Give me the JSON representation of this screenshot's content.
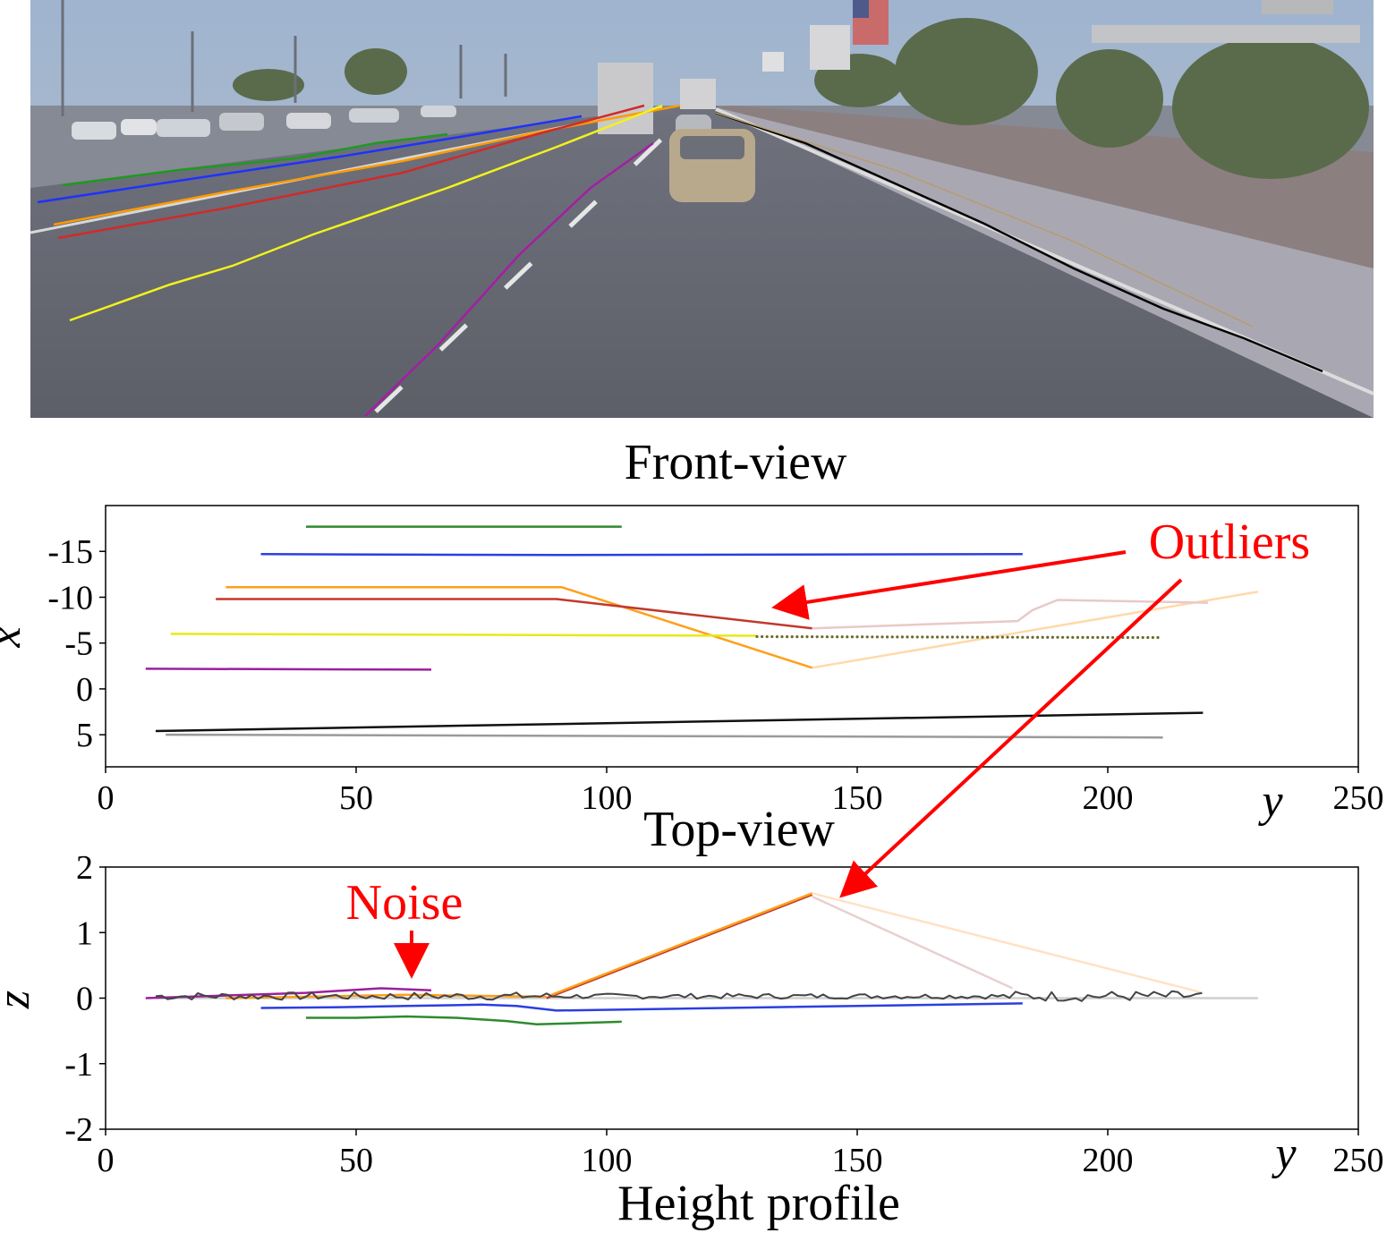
{
  "captions": {
    "front": "Front-view",
    "top": "Top-view",
    "height": "Height profile"
  },
  "annotations": {
    "outliers": "Outliers",
    "noise": "Noise"
  },
  "colors": {
    "green": "#2e8b2e",
    "blue": "#2b3fe0",
    "orange": "#ff9f1c",
    "red": "#c0392b",
    "yellow": "#e8e81a",
    "purple": "#9b209b",
    "black": "#111111",
    "gray": "#9a9a9a",
    "annotation": "#ff0000"
  },
  "front_view": {
    "icons": [
      "road-scene-photo",
      "car-icon",
      "truck-icon",
      "flag-icon",
      "billboard-icon",
      "tree-icon"
    ]
  },
  "chart_data": [
    {
      "type": "line",
      "name_key": "top_view",
      "xlabel": "y",
      "ylabel": "x",
      "xlim": [
        0,
        250
      ],
      "ylim": [
        8.5,
        -20
      ],
      "x_ticks": [
        "0",
        "50",
        "100",
        "150",
        "200",
        "250"
      ],
      "y_ticks": [
        "-15",
        "-10",
        "-5",
        "0",
        "5"
      ],
      "x_tick_values": [
        0,
        50,
        100,
        150,
        200,
        250
      ],
      "y_tick_values": [
        -15,
        -10,
        -5,
        0,
        5
      ],
      "series": [
        {
          "color": "#2e8b2e",
          "points": [
            [
              40,
              -17.7
            ],
            [
              103,
              -17.7
            ]
          ]
        },
        {
          "color": "#2b3fe0",
          "points": [
            [
              31,
              -14.7
            ],
            [
              90,
              -14.6
            ],
            [
              183,
              -14.7
            ]
          ]
        },
        {
          "color": "#ff9f1c",
          "points": [
            [
              24,
              -11.1
            ],
            [
              91,
              -11.1
            ],
            [
              141,
              -2.3
            ]
          ]
        },
        {
          "color": "#ffd9a8",
          "points": [
            [
              141,
              -2.3
            ],
            [
              230,
              -10.6
            ]
          ]
        },
        {
          "color": "#c0392b",
          "points": [
            [
              22,
              -9.8
            ],
            [
              90,
              -9.8
            ],
            [
              141,
              -6.6
            ]
          ]
        },
        {
          "color": "#e8c9c9",
          "points": [
            [
              141,
              -6.6
            ],
            [
              182,
              -7.4
            ],
            [
              185,
              -8.6
            ],
            [
              190,
              -9.7
            ],
            [
              220,
              -9.4
            ]
          ]
        },
        {
          "color": "#e8e81a",
          "points": [
            [
              13,
              -6.0
            ],
            [
              130,
              -5.8
            ]
          ]
        },
        {
          "color": "#6b6b2a",
          "dotted": true,
          "points": [
            [
              130,
              -5.7
            ],
            [
              210,
              -5.6
            ]
          ]
        },
        {
          "color": "#9b209b",
          "points": [
            [
              8,
              -2.2
            ],
            [
              65,
              -2.1
            ]
          ]
        },
        {
          "color": "#111111",
          "points": [
            [
              10,
              4.6
            ],
            [
              219,
              2.6
            ]
          ]
        },
        {
          "color": "#9a9a9a",
          "points": [
            [
              12,
              5.0
            ],
            [
              211,
              5.3
            ]
          ]
        }
      ]
    },
    {
      "type": "line",
      "name_key": "height_profile",
      "xlabel": "y",
      "ylabel": "z",
      "xlim": [
        0,
        250
      ],
      "ylim": [
        -2,
        2
      ],
      "x_ticks": [
        "0",
        "50",
        "100",
        "150",
        "200",
        "250"
      ],
      "y_ticks": [
        "2",
        "1",
        "0",
        "-1",
        "-2"
      ],
      "x_tick_values": [
        0,
        50,
        100,
        150,
        200,
        250
      ],
      "y_tick_values": [
        2,
        1,
        0,
        -1,
        -2
      ],
      "series": [
        {
          "color": "#cfcfcf",
          "points": [
            [
              10,
              0.0
            ],
            [
              230,
              0.0
            ]
          ]
        },
        {
          "color": "#2e8b2e",
          "points": [
            [
              40,
              -0.3
            ],
            [
              50,
              -0.3
            ],
            [
              60,
              -0.28
            ],
            [
              70,
              -0.3
            ],
            [
              80,
              -0.35
            ],
            [
              86,
              -0.4
            ],
            [
              95,
              -0.38
            ],
            [
              103,
              -0.36
            ]
          ]
        },
        {
          "color": "#2b3fe0",
          "points": [
            [
              31,
              -0.15
            ],
            [
              45,
              -0.14
            ],
            [
              60,
              -0.12
            ],
            [
              75,
              -0.1
            ],
            [
              82,
              -0.12
            ],
            [
              90,
              -0.19
            ],
            [
              183,
              -0.08
            ]
          ]
        },
        {
          "color": "#c0392b",
          "points": [
            [
              88,
              0.0
            ],
            [
              141,
              1.58
            ]
          ]
        },
        {
          "color": "#ff9f1c",
          "points": [
            [
              89,
              0.05
            ],
            [
              141,
              1.6
            ]
          ]
        },
        {
          "color": "#e8d0d0",
          "points": [
            [
              141,
              1.55
            ],
            [
              181,
              0.15
            ]
          ]
        },
        {
          "color": "#ffe2c4",
          "points": [
            [
              141,
              1.6
            ],
            [
              219,
              0.08
            ]
          ]
        },
        {
          "color": "#9b209b",
          "points": [
            [
              8,
              0.0
            ],
            [
              40,
              0.08
            ],
            [
              55,
              0.15
            ],
            [
              65,
              0.12
            ]
          ]
        },
        {
          "color": "#ff9f1c",
          "points": [
            [
              24,
              0.0
            ],
            [
              60,
              0.05
            ],
            [
              88,
              0.02
            ]
          ]
        },
        {
          "color": "#444444",
          "noisy": true,
          "points": [
            [
              10,
              0.1
            ],
            [
              219,
              0.1
            ]
          ]
        }
      ]
    }
  ]
}
